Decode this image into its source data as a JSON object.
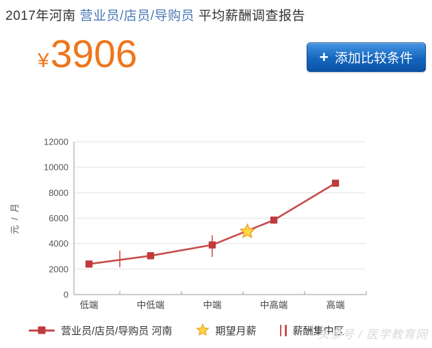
{
  "header": {
    "title_prefix": "2017年河南 ",
    "title_highlight": "营业员/店员/导购员",
    "title_suffix": " 平均薪酬调查报告",
    "currency_symbol": "¥",
    "average_salary": "3906",
    "plus_sign": "+",
    "add_compare_label": "添加比较条件"
  },
  "colors": {
    "title_link": "#4a78b6",
    "price_orange": "#ef751c",
    "button_blue_top": "#4596e2",
    "button_blue_bottom": "#0b52a6",
    "series_line": "#c74a49",
    "series_marker": "#c03a3c",
    "star_fill": "#ffd83e",
    "star_stroke": "#eda32f",
    "zone_bar": "#cc4f4d",
    "grid": "#e2e2e2",
    "axis": "#9a9a9a",
    "tick_text": "#555555",
    "xlabel_text": "#444444"
  },
  "chart_data": {
    "type": "line",
    "categories": [
      "低端",
      "中低端",
      "中端",
      "中高端",
      "高端"
    ],
    "series": [
      {
        "name": "营业员/店员/导购员 河南",
        "values": [
          2400,
          3050,
          3900,
          5850,
          8750
        ]
      }
    ],
    "expected_salary": {
      "label": "期望月薪",
      "value": 4950,
      "x_index": 2.57
    },
    "concentration_zone": {
      "label": "薪酬集中区",
      "bars": [
        {
          "x_index": 0.5,
          "from": 2150,
          "to": 3450
        },
        {
          "x_index": 2.0,
          "from": 2950,
          "to": 4650
        }
      ]
    },
    "ylabel": "元 / 月",
    "ylim": [
      0,
      12000
    ],
    "ytick_step": 2000,
    "grid": true,
    "legend_position": "bottom"
  },
  "watermark": {
    "text": "头条号 / 医学教育网"
  }
}
